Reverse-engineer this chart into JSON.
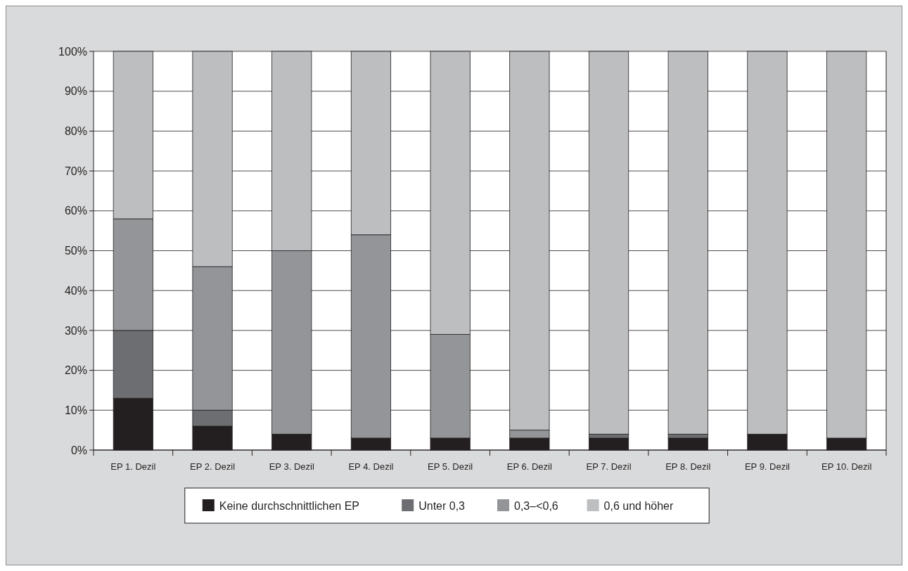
{
  "chart_data": {
    "type": "bar",
    "stacked": true,
    "categories": [
      "EP 1. Dezil",
      "EP 2. Dezil",
      "EP 3. Dezil",
      "EP 4. Dezil",
      "EP 5. Dezil",
      "EP 6. Dezil",
      "EP 7. Dezil",
      "EP 8. Dezil",
      "EP 9. Dezil",
      "EP 10. Dezil"
    ],
    "series": [
      {
        "name": "Keine durchschnittlichen EP",
        "color": "#231f20",
        "values": [
          13,
          6,
          4,
          3,
          3,
          3,
          3,
          3,
          4,
          3
        ]
      },
      {
        "name": "Unter 0,3",
        "color": "#6d6e71",
        "values": [
          17,
          4,
          0,
          0,
          0,
          0,
          1,
          1,
          0,
          0
        ]
      },
      {
        "name": "0,3–<0,6",
        "color": "#939598",
        "values": [
          28,
          36,
          46,
          51,
          26,
          2,
          0,
          0,
          0,
          0
        ]
      },
      {
        "name": "0,6 und höher",
        "color": "#bcbec0",
        "values": [
          42,
          54,
          50,
          46,
          71,
          95,
          96,
          96,
          96,
          97
        ]
      }
    ],
    "ylim": [
      0,
      100
    ],
    "yticks": [
      {
        "value": 0,
        "label": "0%"
      },
      {
        "value": 10,
        "label": "10%"
      },
      {
        "value": 20,
        "label": "20%"
      },
      {
        "value": 30,
        "label": "30%"
      },
      {
        "value": 40,
        "label": "40%"
      },
      {
        "value": 50,
        "label": "50%"
      },
      {
        "value": 60,
        "label": "60%"
      },
      {
        "value": 70,
        "label": "70%"
      },
      {
        "value": 80,
        "label": "80%"
      },
      {
        "value": 90,
        "label": "90%"
      },
      {
        "value": 100,
        "label": "100%"
      }
    ],
    "grid": "y",
    "legend": "bottom"
  }
}
